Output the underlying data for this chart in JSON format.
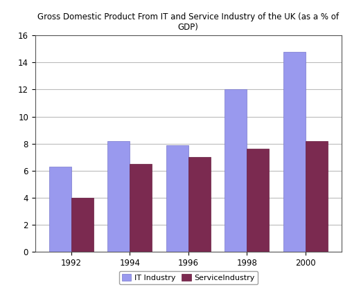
{
  "title": "Gross Domestic Product From IT and Service Industry of the UK (as a % of\nGDP)",
  "categories": [
    "1992",
    "1994",
    "1996",
    "1998",
    "2000"
  ],
  "it_values": [
    6.3,
    8.2,
    7.9,
    12.0,
    14.8
  ],
  "service_values": [
    4.0,
    6.5,
    7.0,
    7.6,
    8.2
  ],
  "it_color": "#9999EE",
  "service_color": "#7B2A50",
  "ylim": [
    0,
    16
  ],
  "yticks": [
    0,
    2,
    4,
    6,
    8,
    10,
    12,
    14,
    16
  ],
  "legend_labels": [
    "IT Industry",
    "ServiceIndustry"
  ],
  "bar_width": 0.38,
  "title_fontsize": 8.5,
  "tick_fontsize": 8.5,
  "legend_fontsize": 8,
  "bg_color": "#FFFFFF",
  "grid_color": "#BBBBBB",
  "border_color": "#888888"
}
